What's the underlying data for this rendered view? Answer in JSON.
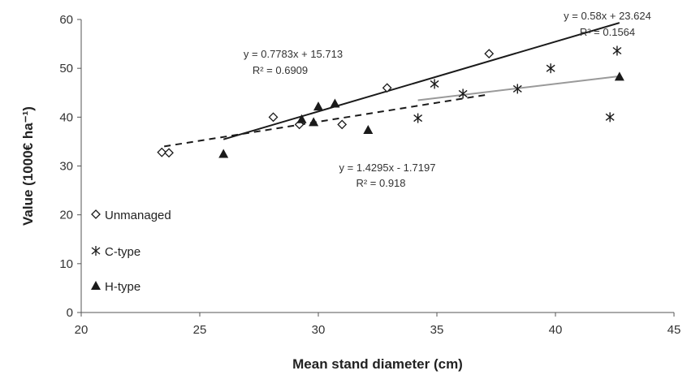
{
  "chart_data": {
    "type": "scatter",
    "title": "",
    "xlabel": "Mean stand diameter (cm)",
    "ylabel": "Value (1000€ ha⁻¹)",
    "xlim": [
      20,
      45
    ],
    "ylim": [
      0,
      60
    ],
    "xticks": [
      20,
      25,
      30,
      35,
      40,
      45
    ],
    "yticks": [
      0,
      10,
      20,
      30,
      40,
      50,
      60
    ],
    "grid": false,
    "legend_position": "left",
    "series": [
      {
        "name": "Unmanaged",
        "marker": "diamond-open",
        "x": [
          23.4,
          23.7,
          28.1,
          29.2,
          31.0,
          32.9,
          37.2
        ],
        "y": [
          32.8,
          32.7,
          40.0,
          38.5,
          38.5,
          46.0,
          53.0
        ],
        "trendline": {
          "slope": 0.7783,
          "intercept": 15.713,
          "x_range": [
            23.5,
            37.2
          ],
          "style": "dashed"
        },
        "equation": "y = 0.7783x + 15.713",
        "r2": "R² = 0.6909"
      },
      {
        "name": "C-type",
        "marker": "asterisk",
        "x": [
          34.2,
          34.9,
          36.1,
          38.4,
          39.8,
          42.3,
          42.6
        ],
        "y": [
          39.8,
          46.8,
          44.8,
          45.8,
          50.0,
          40.0,
          53.6
        ],
        "trendline": {
          "slope": 0.58,
          "intercept": 23.624,
          "x_range": [
            34.2,
            42.6
          ],
          "style": "solid-grey"
        },
        "equation": "y = 0.58x + 23.624",
        "r2": "R² = 0.1564"
      },
      {
        "name": "H-type",
        "marker": "triangle-filled",
        "x": [
          26.0,
          29.3,
          29.8,
          30.0,
          30.7,
          32.1,
          42.7
        ],
        "y": [
          32.5,
          39.6,
          39.0,
          42.2,
          42.8,
          37.4,
          48.3
        ],
        "trendline": {
          "slope": 1.4295,
          "intercept": -1.7197,
          "x_range": [
            26.0,
            42.7
          ],
          "style": "solid-black"
        },
        "equation": "y = 1.4295x - 1.7197",
        "r2": "R² = 0.918"
      }
    ],
    "colors": {
      "marker": "#1a1a1a",
      "c_type_trend": "#9a9a9a",
      "axis": "#555555"
    }
  }
}
